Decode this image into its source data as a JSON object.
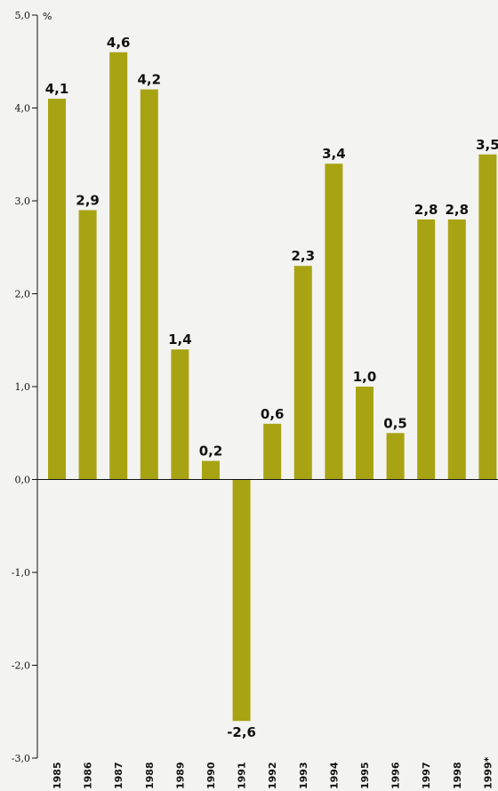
{
  "chart_data": {
    "type": "bar",
    "unit": "%",
    "categories": [
      "1985",
      "1986",
      "1987",
      "1988",
      "1989",
      "1990",
      "1991",
      "1992",
      "1993",
      "1994",
      "1995",
      "1996",
      "1997",
      "1998",
      "1999*"
    ],
    "values": [
      4.1,
      2.9,
      4.6,
      4.2,
      1.4,
      0.2,
      -2.6,
      0.6,
      2.3,
      3.4,
      1.0,
      0.5,
      2.8,
      2.8,
      3.5
    ],
    "value_labels": [
      "4,1",
      "2,9",
      "4,6",
      "4,2",
      "1,4",
      "0,2",
      "-2,6",
      "0,6",
      "2,3",
      "3,4",
      "1,0",
      "0,5",
      "2,8",
      "2,8",
      "3,5"
    ],
    "yticks": [
      5.0,
      4.0,
      3.0,
      2.0,
      1.0,
      0.0,
      -1.0,
      -2.0,
      -3.0
    ],
    "ytick_labels": [
      "5,0",
      "4,0",
      "3,0",
      "2,0",
      "1,0",
      "0,0",
      "-1,0",
      "-2,0",
      "-3,0"
    ],
    "ylim": [
      -3.0,
      5.0
    ],
    "bar_color": "#a8a312",
    "grid": false
  }
}
